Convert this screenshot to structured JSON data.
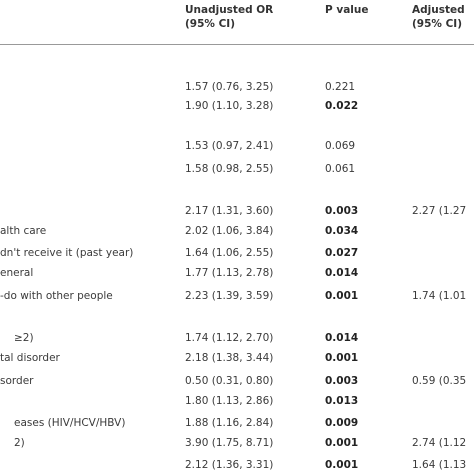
{
  "table": {
    "header": [
      "Unadjusted OR",
      "(95% CI)",
      "P value",
      "Adjusted",
      "(95% CI)"
    ],
    "rows": [
      {
        "or": "1.57 (0.76, 3.25)",
        "p": "0.221"
      },
      {
        "or": "1.90 (1.10, 3.28)",
        "p": "0.022",
        "bold": true
      },
      {
        "or": "1.53 (0.97, 2.41)",
        "p": "0.069"
      },
      {
        "or": "1.58 (0.98, 2.55)",
        "p": "0.061"
      },
      {
        "or": "2.17 (1.31, 3.60)",
        "p": "0.003",
        "bold": true,
        "adjusted": "2.27 (1.27"
      },
      {
        "label": "alth care",
        "or": "2.02 (1.06, 3.84)",
        "p": "0.034",
        "bold": true
      },
      {
        "label": "dn't receive it (past year)",
        "or": "1.64 (1.06, 2.55)",
        "p": "0.027",
        "bold": true
      },
      {
        "label": "eneral",
        "or": "1.77 (1.13, 2.78)",
        "p": "0.014",
        "bold": true
      },
      {
        "label": "-do with other people",
        "or": "2.23 (1.39, 3.59)",
        "p": "0.001",
        "bold": true,
        "adjusted": "1.74 (1.01"
      },
      {
        "label": "≥2)",
        "or": "1.74 (1.12, 2.70)",
        "p": "0.014",
        "bold": true
      },
      {
        "label": "tal disorder",
        "or": "2.18 (1.38, 3.44)",
        "p": "0.001",
        "bold": true
      },
      {
        "label": "sorder",
        "or": "0.50 (0.31, 0.80)",
        "p": "0.003",
        "bold": true,
        "adjusted": "0.59 (0.35"
      },
      {
        "or": "1.80 (1.13, 2.86)",
        "p": "0.013",
        "bold": true
      },
      {
        "label": "eases (HIV/HCV/HBV)",
        "or": "1.88 (1.16, 2.84)",
        "p": "0.009",
        "bold": true
      },
      {
        "label": "2)",
        "or": "3.90 (1.75, 8.71)",
        "p": "0.001",
        "bold": true,
        "adjusted": "2.74 (1.12"
      },
      {
        "or": "2.12 (1.36, 3.31)",
        "p": "0.001",
        "bold": true,
        "adjusted": "1.64 (1.13"
      }
    ]
  }
}
